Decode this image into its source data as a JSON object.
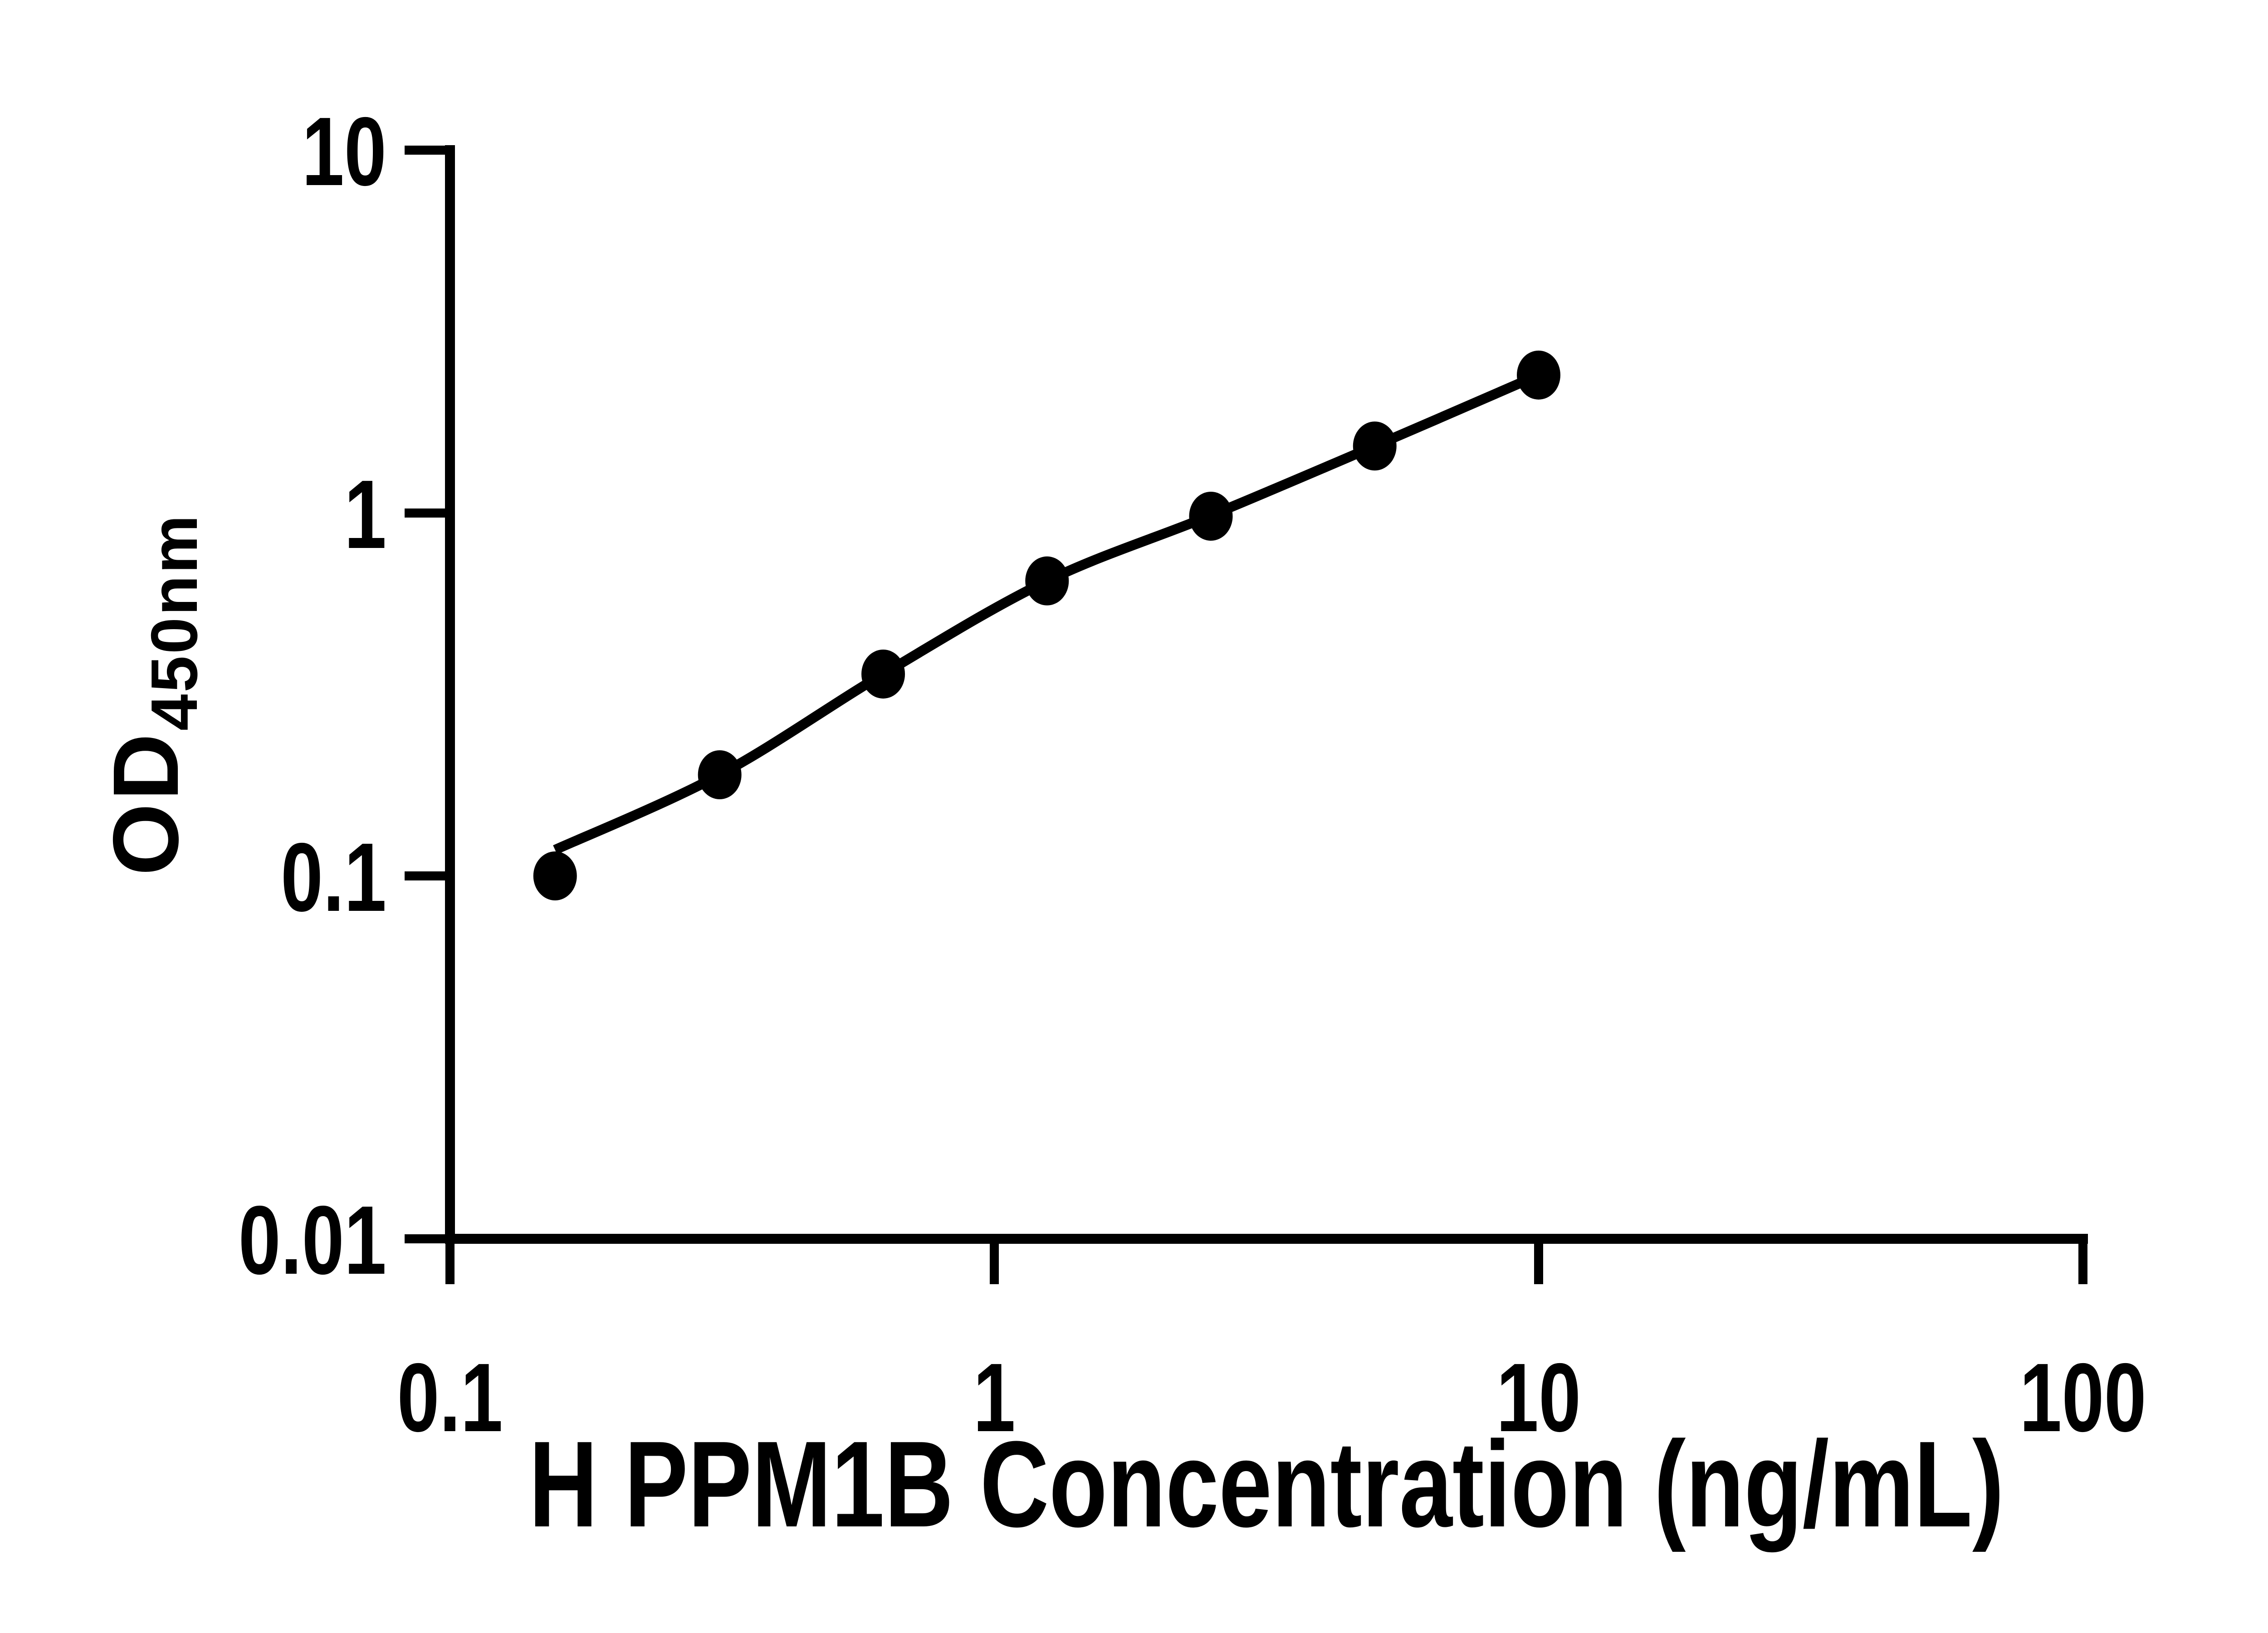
{
  "figure": {
    "background": "#ffffff",
    "ink_color": "#000000"
  },
  "chart_data": {
    "type": "scatter",
    "title": "",
    "xlabel": "H PPM1B Concentration (ng/mL)",
    "ylabel": "OD450nm",
    "ylabel_main": "OD",
    "ylabel_sub": "450nm",
    "x_scale": "log",
    "y_scale": "log",
    "xlim": [
      0.1,
      100
    ],
    "ylim": [
      0.01,
      10
    ],
    "x_ticks": [
      0.1,
      1,
      10,
      100
    ],
    "x_tick_labels": [
      "0.1",
      "1",
      "10",
      "100"
    ],
    "y_ticks": [
      0.01,
      0.1,
      1,
      10
    ],
    "y_tick_labels": [
      "0.01",
      "0.1",
      "1",
      "10"
    ],
    "grid": false,
    "legend_position": "none",
    "marker_shape": "filled-ellipse",
    "marker_color": "#000000",
    "line_color": "#000000",
    "points": [
      {
        "x": 0.156,
        "y": 0.1
      },
      {
        "x": 0.313,
        "y": 0.19
      },
      {
        "x": 0.625,
        "y": 0.36
      },
      {
        "x": 1.25,
        "y": 0.65
      },
      {
        "x": 2.5,
        "y": 0.98
      },
      {
        "x": 5,
        "y": 1.53
      },
      {
        "x": 10,
        "y": 2.4
      }
    ],
    "fit_line": [
      {
        "x": 0.156,
        "y": 0.118
      },
      {
        "x": 0.313,
        "y": 0.19
      },
      {
        "x": 0.625,
        "y": 0.36
      },
      {
        "x": 1.25,
        "y": 0.65
      },
      {
        "x": 2.5,
        "y": 0.985
      },
      {
        "x": 5,
        "y": 1.53
      },
      {
        "x": 10,
        "y": 2.4
      }
    ]
  }
}
